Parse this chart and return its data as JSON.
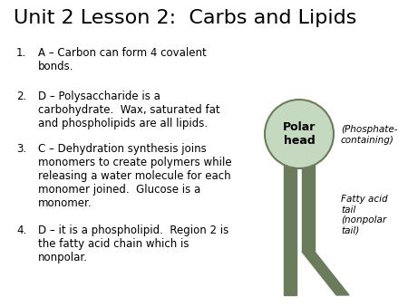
{
  "title": "Unit 2 Lesson 2:  Carbs and Lipids",
  "title_fontsize": 16,
  "bg_color": "#ffffff",
  "text_color": "#000000",
  "items": [
    "A – Carbon can form 4 covalent\nbonds.",
    "D – Polysaccharide is a\ncarbohydrate.  Wax, saturated fat\nand phospholipids are all lipids.",
    "C – Dehydration synthesis joins\nmonomers to create polymers while\nreleasing a water molecule for each\nmonomer joined.  Glucose is a\nmonomer.",
    "D – it is a phospholipid.  Region 2 is\nthe fatty acid chain which is\nnonpolar."
  ],
  "nums": [
    "1.",
    "2.",
    "3.",
    "4."
  ],
  "item_fontsize": 8.5,
  "phospholipid_color": "#6b7c5c",
  "head_color": "#c5d9c0",
  "head_edge_color": "#6b7c5c",
  "label_polar_head": "Polar\nhead",
  "label_phosphate": "(Phosphate-\ncontaining)",
  "label_fatty": "Fatty acid\ntail\n(nonpolar\ntail)"
}
